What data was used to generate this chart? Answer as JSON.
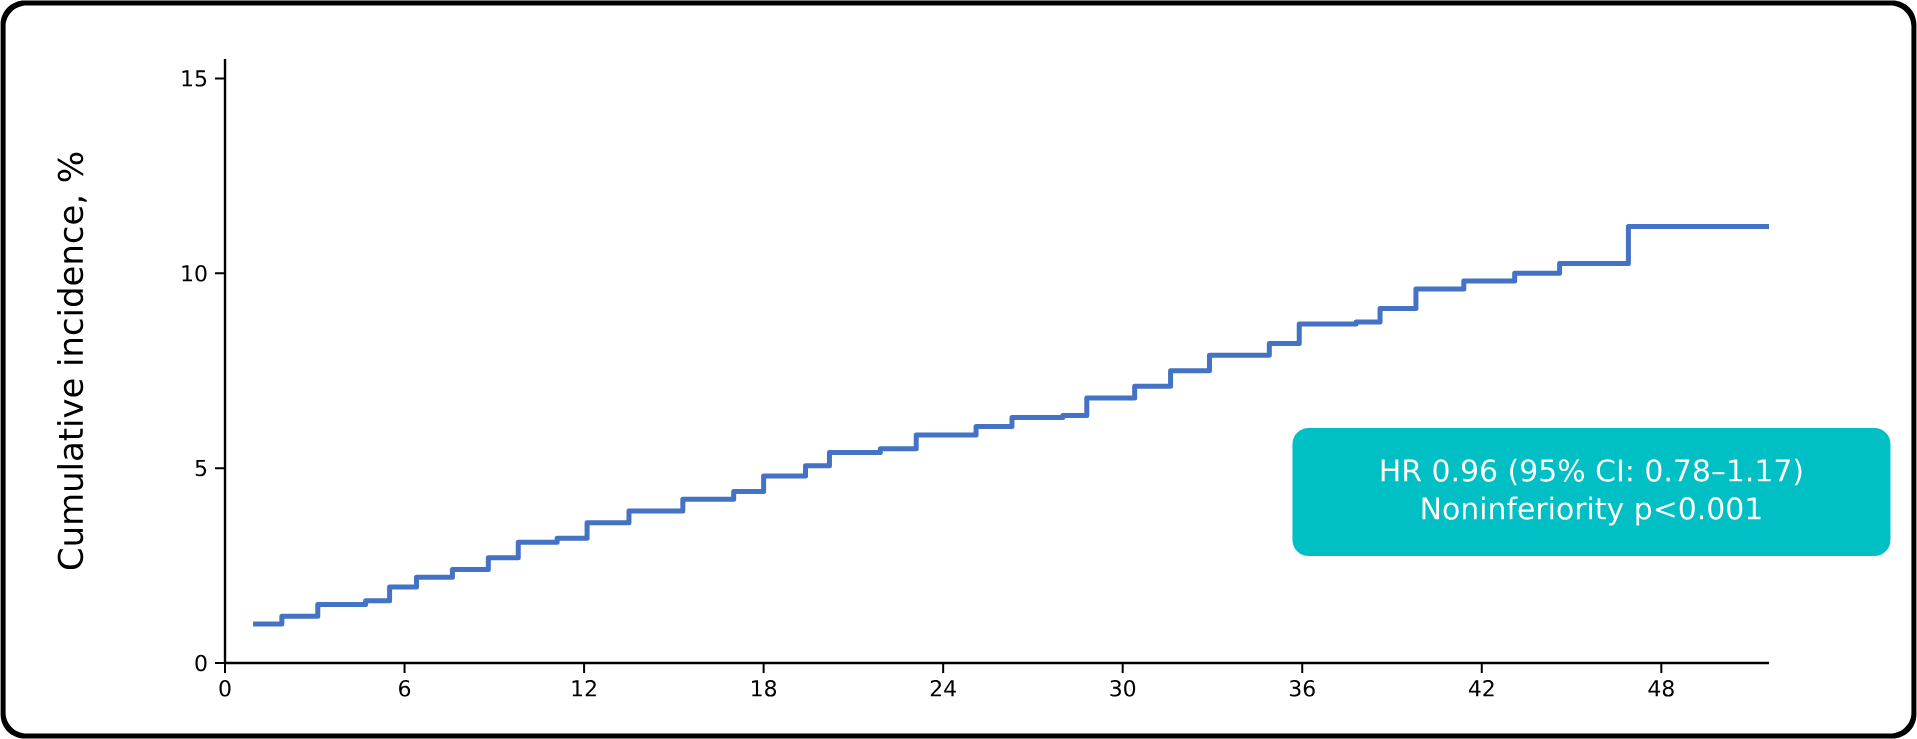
{
  "chart_data": {
    "type": "step",
    "ylabel": "Cumulative incidence, %",
    "x": [
      0.94,
      1.9,
      3.1,
      4.7,
      5.5,
      6.4,
      7.6,
      8.8,
      9.8,
      11.1,
      12.1,
      13.5,
      15.3,
      17.0,
      18.0,
      19.4,
      20.2,
      21.9,
      23.1,
      25.1,
      26.3,
      28.0,
      28.8,
      30.4,
      31.6,
      32.9,
      34.9,
      35.9,
      37.8,
      38.6,
      39.8,
      41.4,
      43.1,
      44.6,
      46.9,
      51.6
    ],
    "series": [
      {
        "color": "#4472c4",
        "values": [
          1.0,
          1.2,
          1.5,
          1.6,
          1.95,
          2.2,
          2.4,
          2.7,
          3.1,
          3.2,
          3.6,
          3.9,
          4.2,
          4.4,
          4.8,
          5.06,
          5.4,
          5.5,
          5.85,
          6.07,
          6.3,
          6.35,
          6.8,
          7.1,
          7.5,
          7.9,
          8.2,
          8.7,
          8.75,
          9.1,
          9.6,
          9.8,
          10.0,
          10.25,
          11.2,
          11.2
        ]
      }
    ],
    "xlim": [
      0,
      51.6
    ],
    "ylim": [
      0,
      15.5
    ],
    "xticks": [
      0,
      6,
      12,
      18,
      24,
      30,
      36,
      42,
      48
    ],
    "yticks": [
      0,
      5,
      10,
      15
    ],
    "annotations": [
      "HR 0.96 (95% CI: 0.78–1.17)",
      "Noninferiority p<0.001"
    ]
  }
}
